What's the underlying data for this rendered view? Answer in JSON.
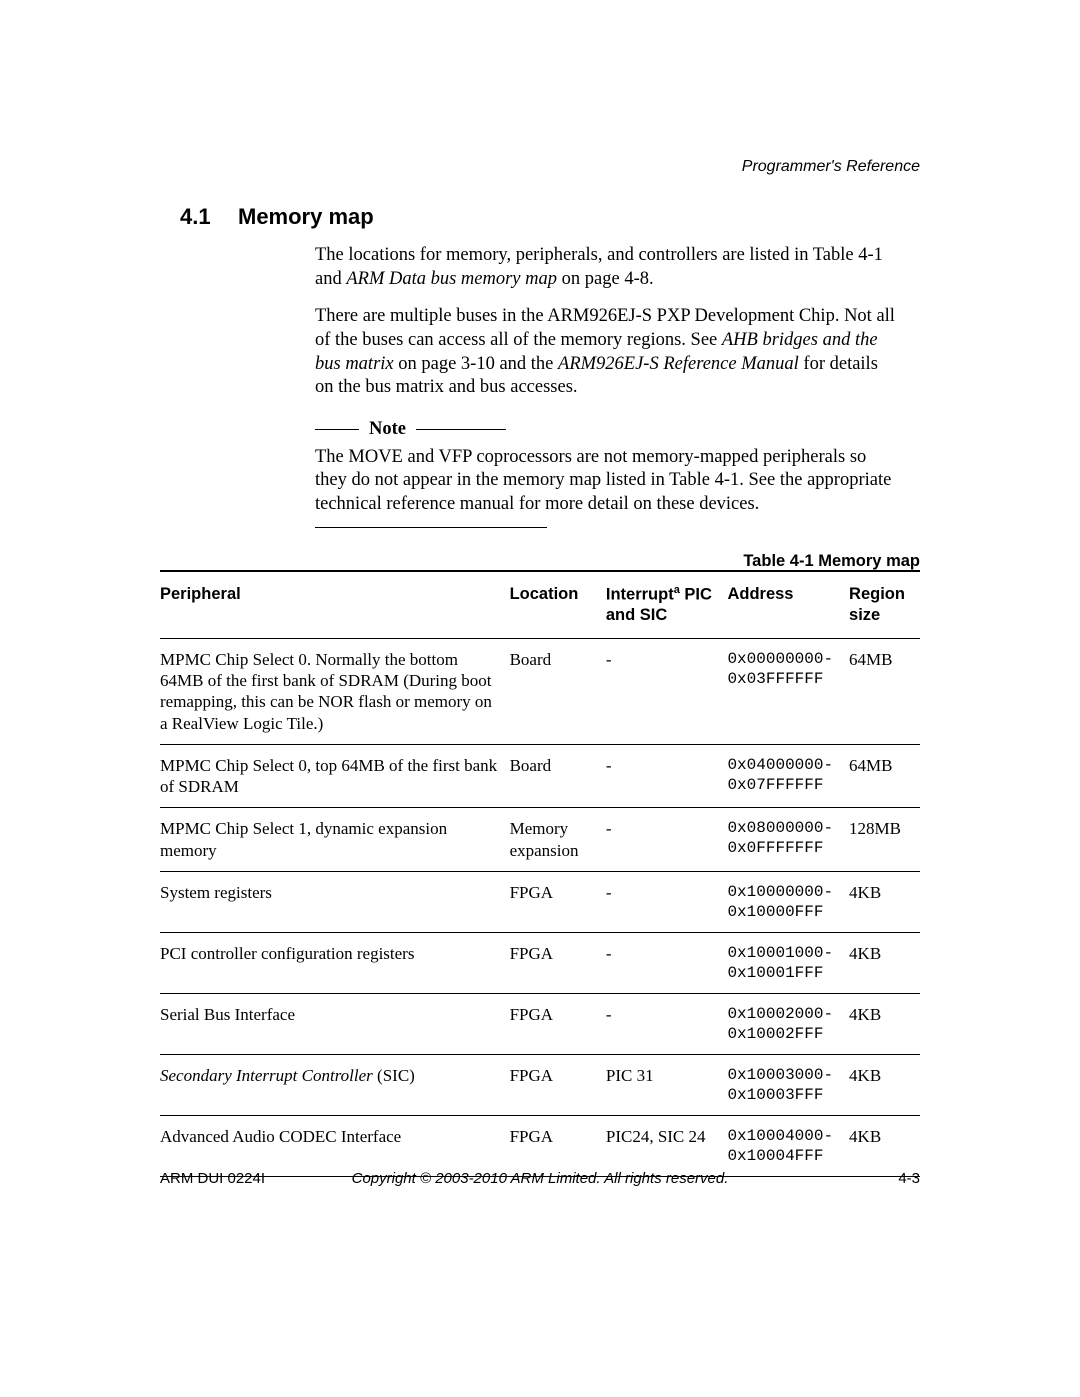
{
  "header": {
    "doc_section": "Programmer's Reference"
  },
  "section": {
    "number": "4.1",
    "title": "Memory map"
  },
  "paragraphs": {
    "p1a": "The locations for memory, peripherals, and controllers are listed in Table 4-1 and ",
    "p1b": "ARM Data bus memory map",
    "p1c": " on page 4-8.",
    "p2a": "There are multiple buses in the ARM926EJ-S PXP Development Chip. Not all of the buses can access all of the memory regions. See ",
    "p2b": "AHB bridges and the bus matrix",
    "p2c": " on page 3-10 and the ",
    "p2d": "ARM926EJ-S Reference Manual",
    "p2e": " for details on the bus matrix and bus accesses."
  },
  "note": {
    "label": "Note",
    "text": "The MOVE and VFP coprocessors are not memory-mapped peripherals so they do not appear in the memory map listed in Table 4-1. See the appropriate technical reference manual for more detail on these devices."
  },
  "table": {
    "caption": "Table 4-1 Memory map",
    "headers": {
      "peripheral": "Peripheral",
      "location": "Location",
      "interrupt_pre": "Interrupt",
      "interrupt_sup": "a",
      "interrupt_post": " PIC and SIC",
      "address": "Address",
      "region": "Region size"
    },
    "rows": [
      {
        "peripheral": "MPMC Chip Select 0. Normally the bottom 64MB of the first bank of SDRAM (During boot remapping, this can be NOR flash or memory on a RealView Logic Tile.)",
        "peripheral_italic": "",
        "location": "Board",
        "interrupt": "-",
        "address": "0x00000000-\n0x03FFFFFF",
        "size": "64MB"
      },
      {
        "peripheral": "MPMC Chip Select 0, top 64MB of the first bank of SDRAM",
        "peripheral_italic": "",
        "location": "Board",
        "interrupt": "-",
        "address": "0x04000000-\n0x07FFFFFF",
        "size": "64MB"
      },
      {
        "peripheral": "MPMC Chip Select 1, dynamic expansion memory",
        "peripheral_italic": "",
        "location": "Memory expansion",
        "interrupt": "-",
        "address": "0x08000000-\n0x0FFFFFFF",
        "size": "128MB"
      },
      {
        "peripheral": "System registers",
        "peripheral_italic": "",
        "location": "FPGA",
        "interrupt": "-",
        "address": "0x10000000-\n0x10000FFF",
        "size": "4KB"
      },
      {
        "peripheral": "PCI controller configuration registers",
        "peripheral_italic": "",
        "location": "FPGA",
        "interrupt": "-",
        "address": "0x10001000-\n0x10001FFF",
        "size": "4KB"
      },
      {
        "peripheral": "Serial Bus Interface",
        "peripheral_italic": "",
        "location": "FPGA",
        "interrupt": "-",
        "address": "0x10002000-\n0x10002FFF",
        "size": "4KB"
      },
      {
        "peripheral": "",
        "peripheral_italic": "Secondary Interrupt Controller",
        "peripheral_suffix": " (SIC)",
        "location": "FPGA",
        "interrupt": "PIC 31",
        "address": "0x10003000-\n0x10003FFF",
        "size": "4KB"
      },
      {
        "peripheral": "Advanced Audio CODEC Interface",
        "peripheral_italic": "",
        "location": "FPGA",
        "interrupt": "PIC24, SIC 24",
        "address": "0x10004000-\n0x10004FFF",
        "size": "4KB"
      }
    ]
  },
  "footer": {
    "left": "ARM DUI 0224I",
    "center": "Copyright © 2003-2010 ARM Limited. All rights reserved.",
    "right": "4-3"
  }
}
